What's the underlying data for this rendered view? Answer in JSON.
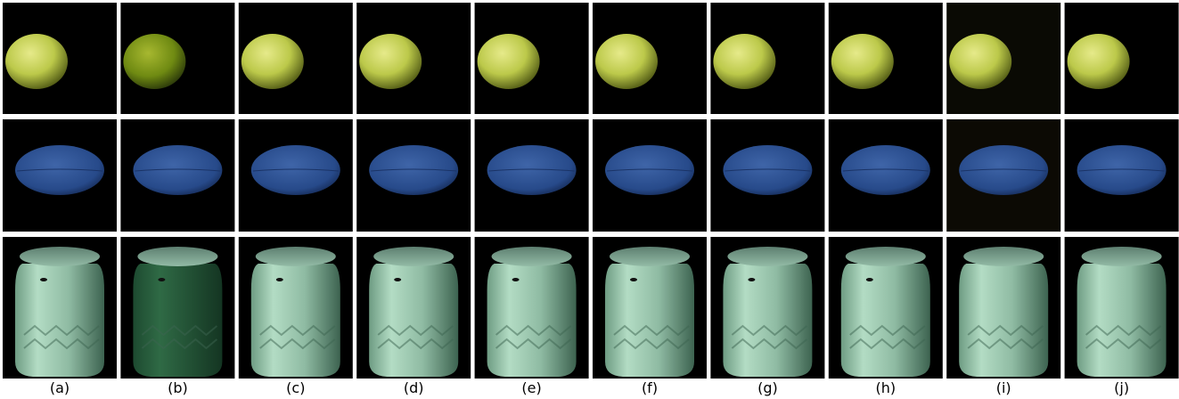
{
  "labels": [
    "(a)",
    "(b)",
    "(c)",
    "(d)",
    "(e)",
    "(f)",
    "(g)",
    "(h)",
    "(i)",
    "(j)"
  ]
}
